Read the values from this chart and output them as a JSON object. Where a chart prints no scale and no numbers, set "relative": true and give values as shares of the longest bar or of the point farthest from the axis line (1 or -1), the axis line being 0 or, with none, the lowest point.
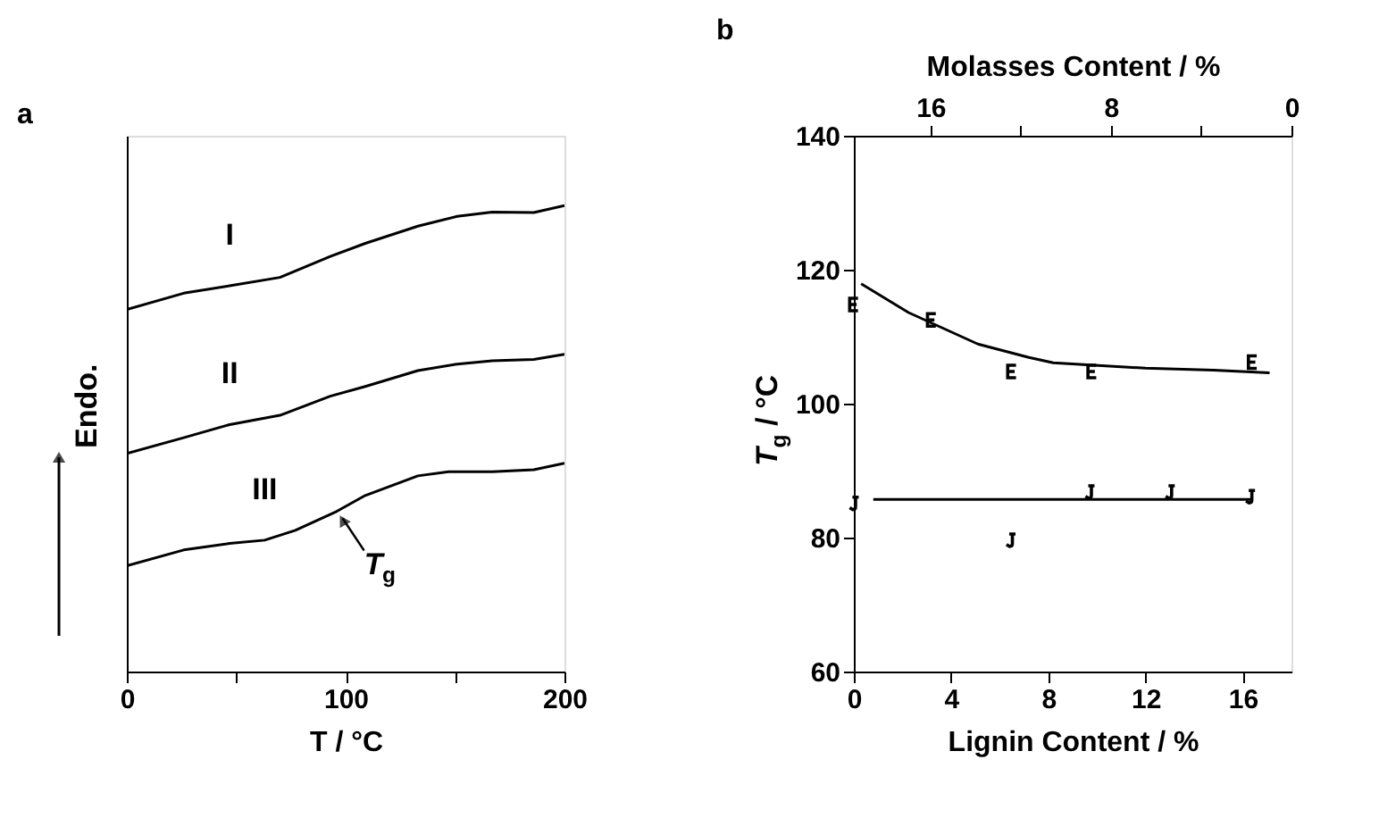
{
  "chart_data": [
    {
      "type": "line",
      "title": "a",
      "xlabel": "T / °C",
      "ylabel": "Endo.",
      "relative": true,
      "xlim": [
        0,
        200
      ],
      "xticks": [
        0,
        {
          "value": 50,
          "label": null
        },
        100,
        {
          "value": 150,
          "label": null
        },
        200
      ],
      "grid": false,
      "series": [
        {
          "name": "I",
          "color": "#000000",
          "x": [
            0,
            26,
            47,
            70,
            93,
            109,
            133,
            151,
            167,
            186,
            200
          ],
          "values": [
            0.777,
            0.812,
            0.828,
            0.846,
            0.891,
            0.919,
            0.956,
            0.977,
            0.986,
            0.985,
            1.0
          ]
        },
        {
          "name": "II",
          "color": "#000000",
          "x": [
            0,
            26,
            47,
            70,
            93,
            109,
            133,
            151,
            167,
            186,
            200
          ],
          "values": [
            0.468,
            0.502,
            0.53,
            0.55,
            0.591,
            0.612,
            0.646,
            0.66,
            0.667,
            0.67,
            0.681
          ]
        },
        {
          "name": "III",
          "color": "#000000",
          "x": [
            0,
            26,
            47,
            63,
            77,
            96,
            109,
            133,
            147,
            167,
            186,
            200
          ],
          "values": [
            0.227,
            0.261,
            0.275,
            0.282,
            0.303,
            0.344,
            0.378,
            0.42,
            0.429,
            0.429,
            0.433,
            0.447
          ]
        }
      ],
      "annotations": [
        {
          "text": "T$_{g}$",
          "x": 97,
          "y": 0.344
        }
      ]
    },
    {
      "type": "scatter",
      "title": "b",
      "xlabel": "Lignin Content / %",
      "ylabel": "T$_{g}$ / °C",
      "x2label": "Molasses Content / %",
      "xlim": [
        0,
        18
      ],
      "xticks": [
        0,
        4,
        8,
        12,
        16
      ],
      "ylim": [
        60,
        140
      ],
      "yticks": [
        60,
        80,
        100,
        120,
        140
      ],
      "x2lim": [
        19.4,
        0
      ],
      "x2ticks": [
        16,
        {
          "value": 12,
          "label": null
        },
        8,
        {
          "value": 4,
          "label": null
        },
        0
      ],
      "grid": false,
      "series": [
        {
          "color": "#000000",
          "x": [
            0,
            3.2,
            6.5,
            9.8,
            16.4
          ],
          "values": [
            114.8,
            112.5,
            104.8,
            104.8,
            106.2
          ]
        },
        {
          "color": "#000000",
          "x": [
            0,
            6.45,
            9.7,
            13,
            16.3
          ],
          "values": [
            85.1,
            79.6,
            86.8,
            86.8,
            86.1
          ]
        },
        {
          "type": "line",
          "color": "#000000",
          "x": [
            0.3,
            2.25,
            5.1,
            7.2,
            8.2,
            12,
            14.8,
            17.1
          ],
          "values": [
            117.9,
            113.6,
            108.9,
            106.9,
            106.1,
            105.3,
            105,
            104.6
          ]
        },
        {
          "type": "line",
          "color": "#000000",
          "x": [
            0.8,
            16.4
          ],
          "values": [
            85.7,
            85.7
          ]
        }
      ]
    }
  ]
}
